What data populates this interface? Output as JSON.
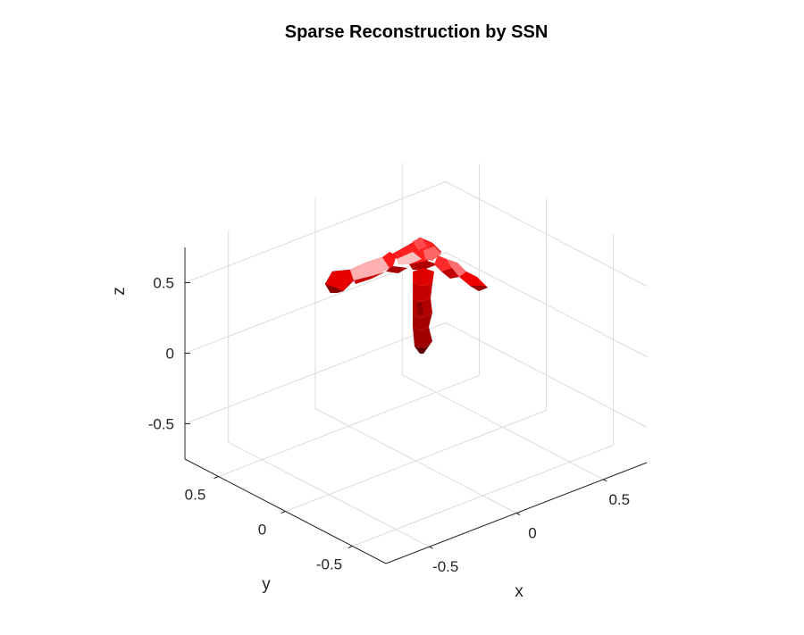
{
  "chart_data": {
    "type": "surface3d",
    "title": "Sparse Reconstruction by SSN",
    "xlabel": "x",
    "ylabel": "y",
    "zlabel": "z",
    "xlim": [
      -0.75,
      0.75
    ],
    "ylim": [
      -0.75,
      0.75
    ],
    "zlim": [
      -0.75,
      0.75
    ],
    "xticks": [
      -0.5,
      0,
      0.5
    ],
    "yticks": [
      -0.5,
      0,
      0.5
    ],
    "zticks": [
      -0.5,
      0,
      0.5
    ],
    "xtick_labels": [
      "-0.5",
      "0",
      "0.5"
    ],
    "ytick_labels": [
      "-0.5",
      "0",
      "0.5"
    ],
    "ztick_labels": [
      "-0.5",
      "0",
      "0.5"
    ],
    "grid": true,
    "view": "isometric",
    "surface_color": "#ff0000",
    "shape": "T-shaped tube: vertical stem along z from about -0.3 to 0.18, horizontal bar spanning from about (-0.45, 0, 0.1) to (0, -0.45, 0.1)"
  }
}
